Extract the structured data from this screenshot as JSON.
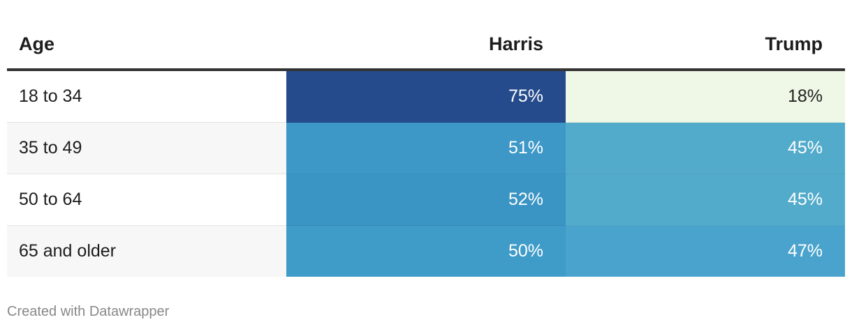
{
  "table": {
    "header": [
      "Age",
      "Harris",
      "Trump"
    ],
    "rows": [
      [
        "18 to 34",
        "75%",
        "18%"
      ],
      [
        "35 to 49",
        "51%",
        "45%"
      ],
      [
        "50 to 64",
        "52%",
        "45%"
      ],
      [
        "65 and older",
        "50%",
        "47%"
      ]
    ]
  },
  "footer": "Created with Datawrapper"
}
